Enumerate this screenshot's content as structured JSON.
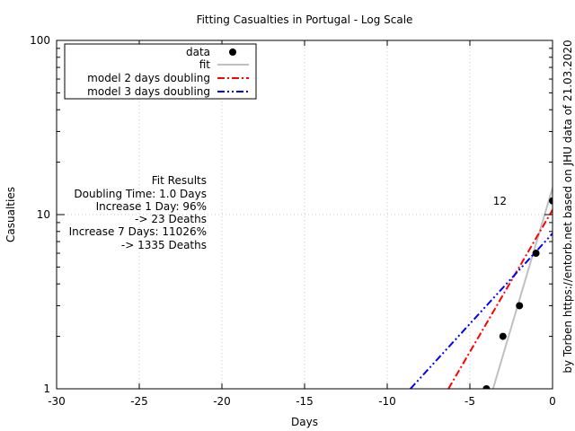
{
  "chart_data": {
    "type": "scatter",
    "title": "Fitting Casualties in Portugal - Log Scale",
    "xlabel": "Days",
    "ylabel": "Casualties",
    "xlim": [
      -30,
      0
    ],
    "ylim": [
      1,
      100
    ],
    "yscale": "log",
    "grid": true,
    "x_ticks": [
      "-30",
      "-25",
      "-20",
      "-15",
      "-10",
      "-5",
      "0"
    ],
    "y_ticks": [
      "1",
      "10",
      "100"
    ],
    "legend_position": "top-left",
    "series": [
      {
        "name": "data",
        "kind": "points",
        "color": "#000000",
        "points": [
          [
            -4,
            1
          ],
          [
            -3,
            2
          ],
          [
            -2,
            3
          ],
          [
            -1,
            6
          ],
          [
            0,
            12
          ]
        ]
      },
      {
        "name": "fit",
        "kind": "line",
        "color": "#c0c0c0",
        "points": [
          [
            -3.6,
            1
          ],
          [
            0.65,
            23
          ]
        ]
      },
      {
        "name": "model 2 days doubling",
        "kind": "line",
        "color": "#ff0000",
        "style": "dash-dot",
        "points": [
          [
            -6.3,
            1
          ],
          [
            0.65,
            13.6
          ]
        ]
      },
      {
        "name": "model 3 days doubling",
        "kind": "line",
        "color": "#0000ff",
        "style": "dash-dot-dot",
        "points": [
          [
            -8.6,
            1
          ],
          [
            0.65,
            9.1
          ]
        ]
      }
    ],
    "annotations": {
      "point_label": "12",
      "fit_results": [
        "Fit Results",
        "Doubling Time: 1.0 Days",
        "Increase 1 Day: 96%",
        "-> 23 Deaths",
        "Increase 7 Days: 11026%",
        "-> 1335 Deaths"
      ],
      "source": "by Torben https://entorb.net based on JHU data of 21.03.2020"
    }
  }
}
